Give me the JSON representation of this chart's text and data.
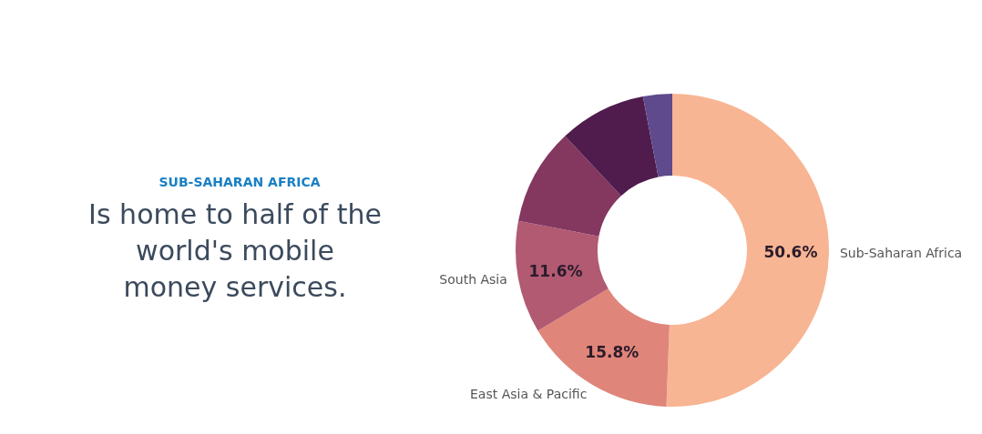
{
  "chart_data": {
    "type": "donut",
    "title": "SUB-SAHARAN AFRICA",
    "subtitle": "Is home to half of the world's mobile money services.",
    "categories": [
      "Sub-Saharan Africa",
      "East Asia & Pacific",
      "South Asia",
      null,
      null,
      null
    ],
    "values": [
      50.6,
      15.8,
      11.6,
      10,
      9,
      3
    ],
    "value_labels": [
      "50.6%",
      "15.8%",
      "11.6%",
      null,
      null,
      null
    ],
    "colors": [
      "#f8b593",
      "#e0857a",
      "#b15a72",
      "#84375f",
      "#4f1c4d",
      "#5e4a8c"
    ],
    "legend": false
  }
}
